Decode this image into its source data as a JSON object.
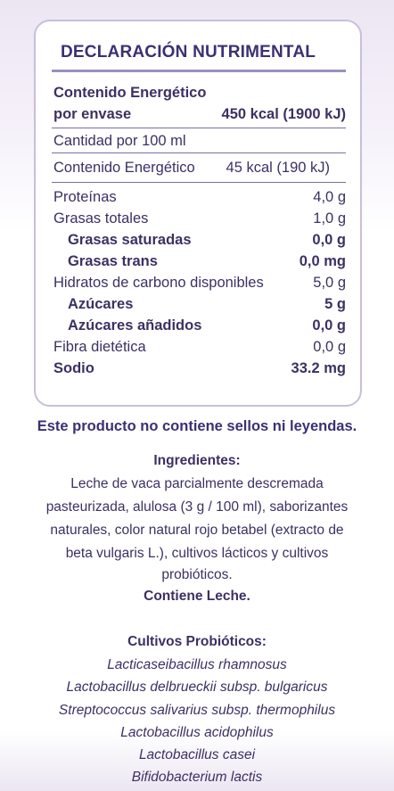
{
  "panel": {
    "title": "DECLARACIÓN NUTRIMENTAL",
    "energy_package_label_line1": "Contenido Energético",
    "energy_package_label_line2": "por envase",
    "energy_package_value": "450 kcal (1900 kJ)",
    "per_100_label": "Cantidad por 100 ml",
    "energy_100_label": "Contenido Energético",
    "energy_100_value": "45 kcal (190 kJ)",
    "nutrients": [
      {
        "label": "Proteínas",
        "value": "4,0 g"
      },
      {
        "label": "Grasas totales",
        "value": "1,0 g"
      },
      {
        "label": "Grasas saturadas",
        "value": "0,0 g"
      },
      {
        "label": "Grasas trans",
        "value": "0,0 mg"
      },
      {
        "label": "Hidratos de carbono disponibles",
        "value": "5,0 g"
      },
      {
        "label": "Azúcares",
        "value": "5 g"
      },
      {
        "label": "Azúcares añadidos",
        "value": "0,0 g"
      },
      {
        "label": "Fibra dietética",
        "value": "0,0 g"
      },
      {
        "label": "Sodio",
        "value": "33.2 mg"
      }
    ]
  },
  "notice": "Este producto no contiene sellos ni leyendas.",
  "ingredients": {
    "heading": "Ingredientes:",
    "lines": [
      "Leche de vaca parcialmente descremada",
      "pasteurizada, alulosa (3 g / 100 ml), saborizantes",
      "naturales, color natural rojo betabel (extracto de",
      "beta vulgaris L.), cultivos lácticos y cultivos",
      "probióticos."
    ],
    "allergen": "Contiene Leche."
  },
  "cultures": {
    "heading": "Cultivos Probióticos:",
    "items": [
      "Lacticaseibacillus rhamnosus",
      "Lactobacillus delbrueckii subsp. bulgaricus",
      "Streptococcus salivarius subsp. thermophilus",
      "Lactobacillus acidophilus",
      "Lactobacillus casei",
      "Bifidobacterium lactis"
    ]
  }
}
